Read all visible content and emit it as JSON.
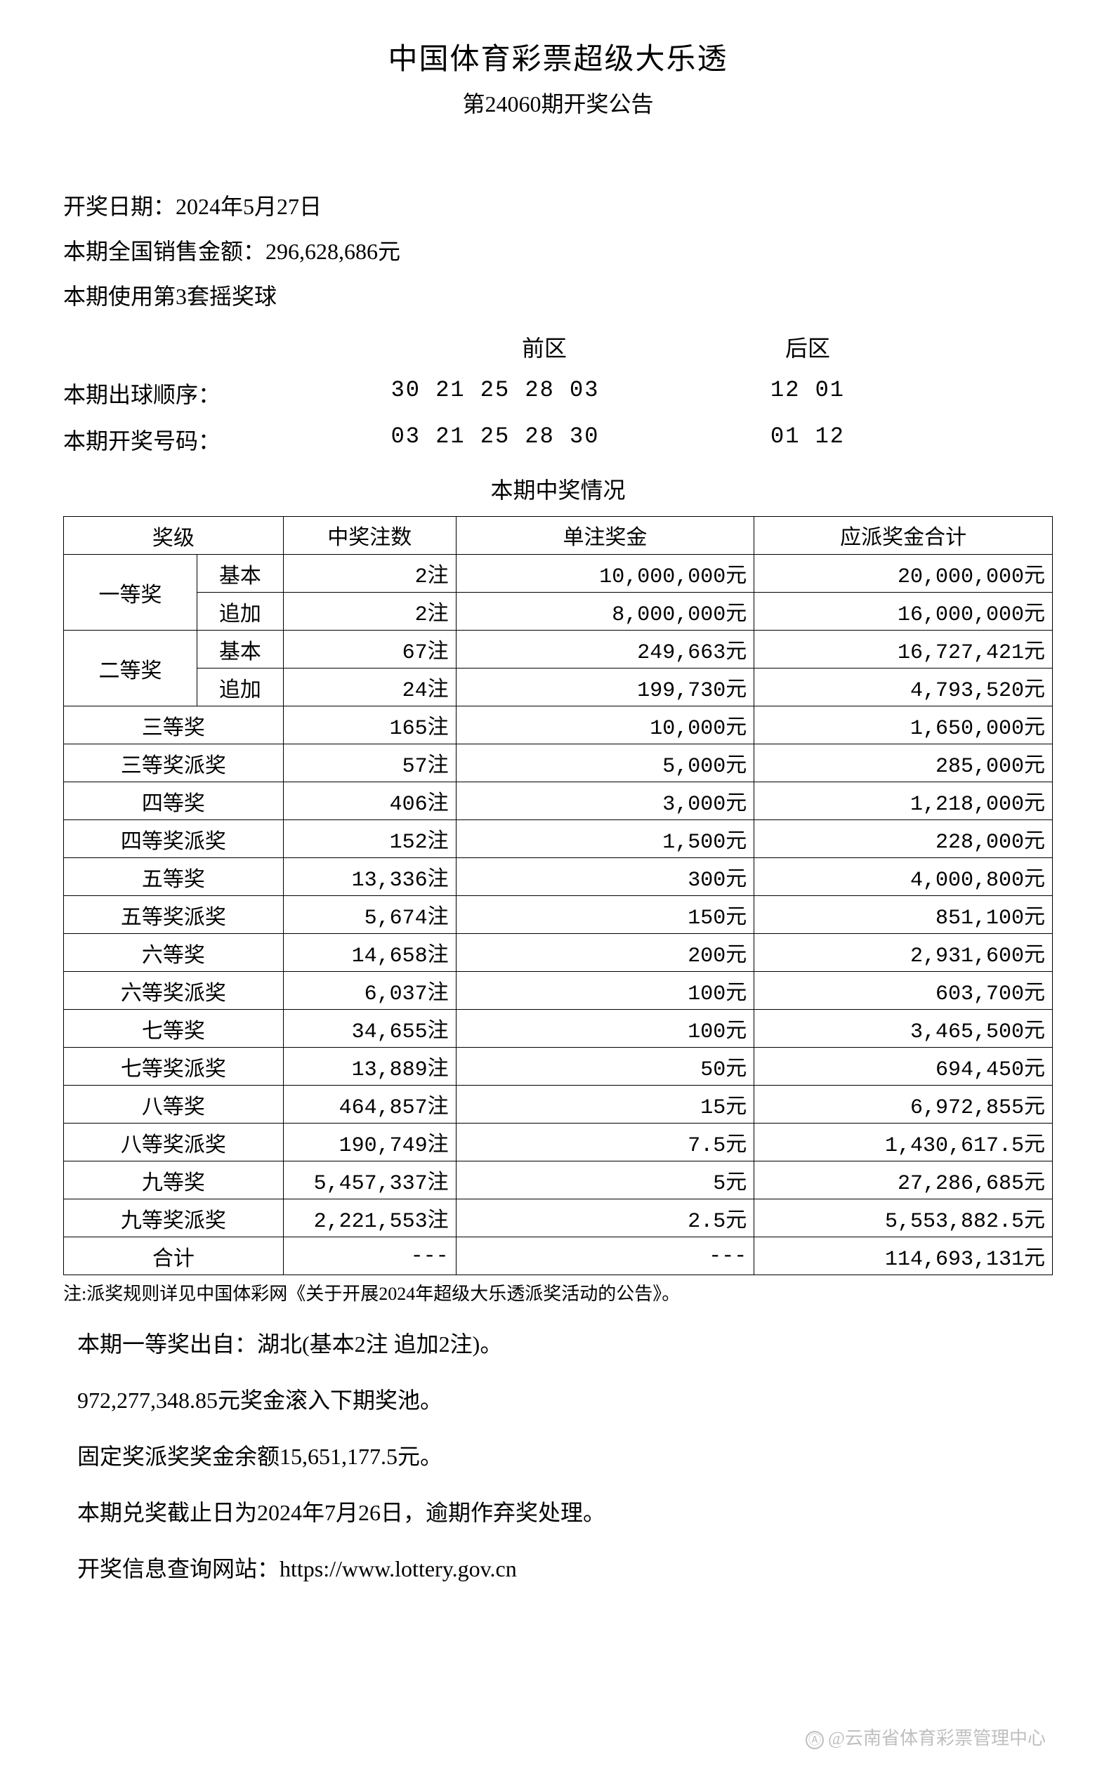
{
  "header": {
    "title": "中国体育彩票超级大乐透",
    "subtitle": "第24060期开奖公告"
  },
  "info": {
    "draw_date": "开奖日期：2024年5月27日",
    "sales": "本期全国销售金额：296,628,686元",
    "ball_set": "本期使用第3套摇奖球"
  },
  "numbers": {
    "front_label": "前区",
    "back_label": "后区",
    "draw_order_label": "本期出球顺序：",
    "draw_order_front": "30 21 25 28 03",
    "draw_order_back": "12 01",
    "winning_label": "本期开奖号码：",
    "winning_front": "03 21 25 28 30",
    "winning_back": "01 12"
  },
  "prize_section_title": "本期中奖情况",
  "table": {
    "headers": {
      "level": "奖级",
      "count": "中奖注数",
      "amount": "单注奖金",
      "total": "应派奖金合计"
    },
    "grouped": [
      {
        "level": "一等奖",
        "subs": [
          {
            "sub": "基本",
            "count": "2注",
            "amount": "10,000,000元",
            "total": "20,000,000元"
          },
          {
            "sub": "追加",
            "count": "2注",
            "amount": "8,000,000元",
            "total": "16,000,000元"
          }
        ]
      },
      {
        "level": "二等奖",
        "subs": [
          {
            "sub": "基本",
            "count": "67注",
            "amount": "249,663元",
            "total": "16,727,421元"
          },
          {
            "sub": "追加",
            "count": "24注",
            "amount": "199,730元",
            "total": "4,793,520元"
          }
        ]
      }
    ],
    "simple": [
      {
        "level": "三等奖",
        "count": "165注",
        "amount": "10,000元",
        "total": "1,650,000元"
      },
      {
        "level": "三等奖派奖",
        "count": "57注",
        "amount": "5,000元",
        "total": "285,000元"
      },
      {
        "level": "四等奖",
        "count": "406注",
        "amount": "3,000元",
        "total": "1,218,000元"
      },
      {
        "level": "四等奖派奖",
        "count": "152注",
        "amount": "1,500元",
        "total": "228,000元"
      },
      {
        "level": "五等奖",
        "count": "13,336注",
        "amount": "300元",
        "total": "4,000,800元"
      },
      {
        "level": "五等奖派奖",
        "count": "5,674注",
        "amount": "150元",
        "total": "851,100元"
      },
      {
        "level": "六等奖",
        "count": "14,658注",
        "amount": "200元",
        "total": "2,931,600元"
      },
      {
        "level": "六等奖派奖",
        "count": "6,037注",
        "amount": "100元",
        "total": "603,700元"
      },
      {
        "level": "七等奖",
        "count": "34,655注",
        "amount": "100元",
        "total": "3,465,500元"
      },
      {
        "level": "七等奖派奖",
        "count": "13,889注",
        "amount": "50元",
        "total": "694,450元"
      },
      {
        "level": "八等奖",
        "count": "464,857注",
        "amount": "15元",
        "total": "6,972,855元"
      },
      {
        "level": "八等奖派奖",
        "count": "190,749注",
        "amount": "7.5元",
        "total": "1,430,617.5元"
      },
      {
        "level": "九等奖",
        "count": "5,457,337注",
        "amount": "5元",
        "total": "27,286,685元"
      },
      {
        "level": "九等奖派奖",
        "count": "2,221,553注",
        "amount": "2.5元",
        "total": "5,553,882.5元"
      }
    ],
    "sum": {
      "level": "合计",
      "count": "---",
      "amount": "---",
      "total": "114,693,131元"
    }
  },
  "note": "注:派奖规则详见中国体彩网《关于开展2024年超级大乐透派奖活动的公告》。",
  "footer": {
    "line1": "本期一等奖出自：湖北(基本2注 追加2注)。",
    "line2": "972,277,348.85元奖金滚入下期奖池。",
    "line3": "固定奖派奖奖金余额15,651,177.5元。",
    "line4": "本期兑奖截止日为2024年7月26日，逾期作弃奖处理。",
    "line5": "开奖信息查询网站：https://www.lottery.gov.cn"
  },
  "watermark": "@云南省体育彩票管理中心"
}
